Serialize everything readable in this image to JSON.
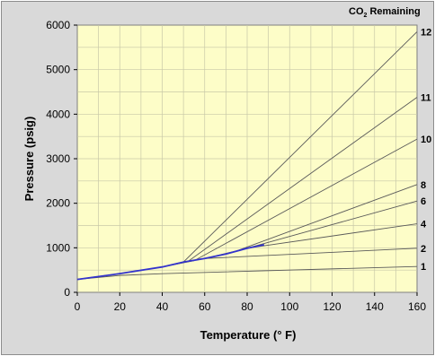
{
  "chart_data": {
    "type": "line",
    "xlabel": "Temperature (° F)",
    "ylabel": "Pressure (psig)",
    "legend_title_main": "CO",
    "legend_title_sub": "2",
    "legend_title_rest": " Remaining",
    "xlim": [
      0,
      160
    ],
    "ylim": [
      0,
      6000
    ],
    "x_ticks": [
      "0",
      "20",
      "40",
      "60",
      "80",
      "100",
      "120",
      "140",
      "160"
    ],
    "y_ticks": [
      "0",
      "1000",
      "2000",
      "3000",
      "4000",
      "5000",
      "6000"
    ],
    "grid": true,
    "colors": {
      "plot_bg": "#fdfdc8",
      "grid": "#c8c8a8",
      "curves": "#5a5a5a",
      "saturation": "#3333cc"
    },
    "saturation_line": {
      "x": [
        0,
        20,
        40,
        50,
        60,
        70,
        80,
        88
      ],
      "y": [
        290,
        420,
        570,
        680,
        760,
        860,
        990,
        1070
      ]
    },
    "series": [
      {
        "name": "12",
        "x": [
          0,
          20,
          40,
          50,
          160
        ],
        "y": [
          290,
          420,
          570,
          680,
          5850
        ]
      },
      {
        "name": "11",
        "x": [
          0,
          20,
          40,
          52,
          160
        ],
        "y": [
          290,
          420,
          570,
          690,
          4380
        ]
      },
      {
        "name": "10",
        "x": [
          0,
          20,
          40,
          55,
          160
        ],
        "y": [
          290,
          420,
          570,
          710,
          3440
        ]
      },
      {
        "name": "8",
        "x": [
          0,
          20,
          40,
          50,
          60,
          75,
          160
        ],
        "y": [
          290,
          420,
          570,
          680,
          760,
          930,
          2420
        ]
      },
      {
        "name": "6",
        "x": [
          0,
          20,
          40,
          50,
          60,
          70,
          80,
          160
        ],
        "y": [
          290,
          420,
          570,
          680,
          760,
          860,
          990,
          2050
        ]
      },
      {
        "name": "4",
        "x": [
          0,
          20,
          40,
          50,
          60,
          70,
          80,
          160
        ],
        "y": [
          290,
          420,
          570,
          680,
          760,
          860,
          990,
          1540
        ]
      },
      {
        "name": "2",
        "x": [
          0,
          20,
          40,
          50,
          60,
          160
        ],
        "y": [
          290,
          420,
          570,
          680,
          760,
          990
        ]
      },
      {
        "name": "1",
        "x": [
          0,
          20,
          40,
          160
        ],
        "y": [
          290,
          380,
          420,
          580
        ]
      }
    ]
  }
}
